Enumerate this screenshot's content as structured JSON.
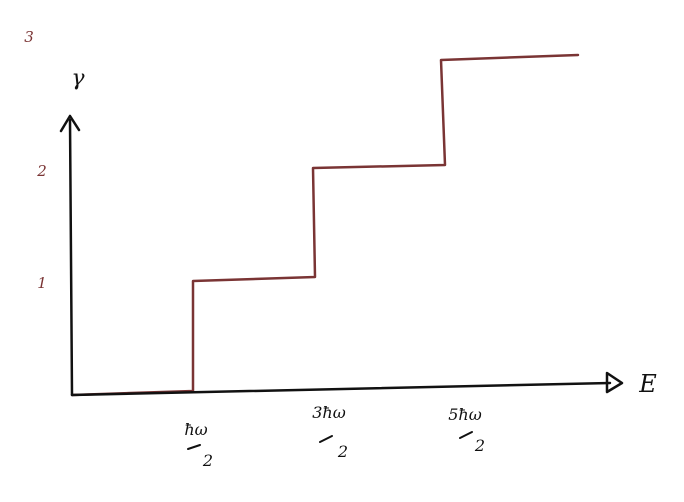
{
  "diagram": {
    "type": "step_plot",
    "axes": {
      "y_label": "γ",
      "x_label": "E"
    },
    "y_ticks": [
      "1",
      "2",
      "3"
    ],
    "x_ticks": [
      {
        "top": "ħω",
        "bottom": "2"
      },
      {
        "top": "3ħω",
        "bottom": "2"
      },
      {
        "top": "5ħω",
        "bottom": "2"
      }
    ],
    "colors": {
      "axis": "#111111",
      "step": "#7a3434",
      "tick_label": "#7a3434"
    }
  },
  "chart_data": {
    "type": "line",
    "step": true,
    "x": [
      "0",
      "ħω/2",
      "3ħω/2",
      "5ħω/2"
    ],
    "y": [
      0,
      1,
      2,
      3
    ]
  }
}
